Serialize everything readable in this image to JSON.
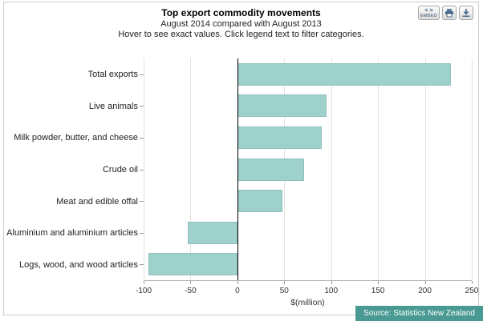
{
  "header": {
    "title": "Top export commodity movements",
    "subtitle": "August 2014 compared with August 2013",
    "hint": "Hover to see exact values. Click legend text to filter categories."
  },
  "toolbar": {
    "embed_symbol": "< >",
    "embed_label": "EMBED",
    "print_icon": "print-icon",
    "download_icon": "download-icon"
  },
  "chart_data": {
    "type": "bar",
    "orientation": "horizontal",
    "title": "Top export commodity movements",
    "subtitle": "August 2014 compared with August 2013",
    "categories": [
      "Total exports",
      "Live animals",
      "Milk powder, butter, and cheese",
      "Crude oil",
      "Meat and edible offal",
      "Aluminium and aluminium articles",
      "Logs, wood, and wood articles"
    ],
    "values": [
      228,
      95,
      90,
      71,
      48,
      -53,
      -95
    ],
    "xlabel": "$(million)",
    "xlim": [
      -100,
      250
    ],
    "xticks": [
      -100,
      -50,
      0,
      50,
      100,
      150,
      200,
      250
    ],
    "bar_color": "#9ed0cc",
    "zero_line_color": "#000000",
    "grid": true,
    "legend_position": "none"
  },
  "footer": {
    "source": "Source: Statistics New Zealand"
  }
}
